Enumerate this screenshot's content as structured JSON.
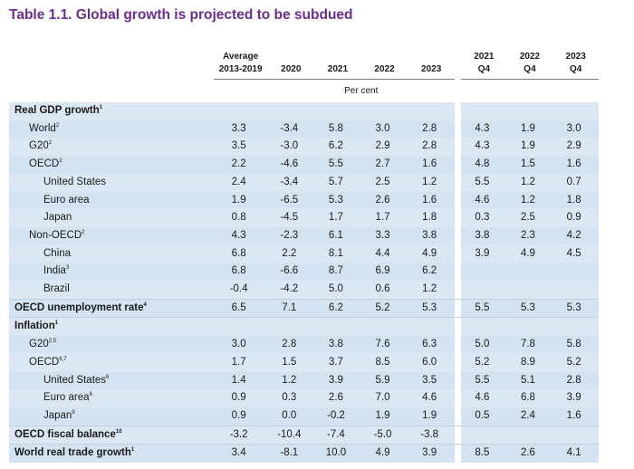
{
  "title": "Table 1.1. Global growth is projected to be subdued",
  "header": {
    "avg_line1": "Average",
    "avg_line2": "2013-2019",
    "years": [
      "2020",
      "2021",
      "2022",
      "2023"
    ],
    "quarters": [
      {
        "year": "2021",
        "q": "Q4"
      },
      {
        "year": "2022",
        "q": "Q4"
      },
      {
        "year": "2023",
        "q": "Q4"
      }
    ],
    "unit": "Per cent"
  },
  "rows": [
    {
      "label": "Real GDP growth",
      "sup": "1",
      "level": 0,
      "values": [
        "",
        "",
        "",
        "",
        ""
      ],
      "q4": [
        "",
        "",
        ""
      ]
    },
    {
      "label": "World",
      "sup": "2",
      "level": 1,
      "values": [
        "3.3",
        "-3.4",
        "5.8",
        "3.0",
        "2.8"
      ],
      "q4": [
        "4.3",
        "1.9",
        "3.0"
      ]
    },
    {
      "label": "G20",
      "sup": "2",
      "level": 1,
      "values": [
        "3.5",
        "-3.0",
        "6.2",
        "2.9",
        "2.8"
      ],
      "q4": [
        "4.3",
        "1.9",
        "2.9"
      ]
    },
    {
      "label": "OECD",
      "sup": "2",
      "level": 1,
      "values": [
        "2.2",
        "-4.6",
        "5.5",
        "2.7",
        "1.6"
      ],
      "q4": [
        "4.8",
        "1.5",
        "1.6"
      ]
    },
    {
      "label": "United States",
      "sup": "",
      "level": 2,
      "values": [
        "2.4",
        "-3.4",
        "5.7",
        "2.5",
        "1.2"
      ],
      "q4": [
        "5.5",
        "1.2",
        "0.7"
      ]
    },
    {
      "label": "Euro area",
      "sup": "",
      "level": 2,
      "values": [
        "1.9",
        "-6.5",
        "5.3",
        "2.6",
        "1.6"
      ],
      "q4": [
        "4.6",
        "1.2",
        "1.8"
      ]
    },
    {
      "label": "Japan",
      "sup": "",
      "level": 2,
      "values": [
        "0.8",
        "-4.5",
        "1.7",
        "1.7",
        "1.8"
      ],
      "q4": [
        "0.3",
        "2.5",
        "0.9"
      ]
    },
    {
      "label": "Non-OECD",
      "sup": "2",
      "level": 1,
      "values": [
        "4.3",
        "-2.3",
        "6.1",
        "3.3",
        "3.8"
      ],
      "q4": [
        "3.8",
        "2.3",
        "4.2"
      ]
    },
    {
      "label": "China",
      "sup": "",
      "level": 2,
      "values": [
        "6.8",
        "2.2",
        "8.1",
        "4.4",
        "4.9"
      ],
      "q4": [
        "3.9",
        "4.9",
        "4.5"
      ]
    },
    {
      "label": "India",
      "sup": "3",
      "level": 2,
      "values": [
        "6.8",
        "-6.6",
        "8.7",
        "6.9",
        "6.2"
      ],
      "q4": [
        "",
        "",
        ""
      ]
    },
    {
      "label": "Brazil",
      "sup": "",
      "level": 2,
      "values": [
        "-0.4",
        "-4.2",
        "5.0",
        "0.6",
        "1.2"
      ],
      "q4": [
        "",
        "",
        ""
      ]
    },
    {
      "label": "OECD unemployment rate",
      "sup": "4",
      "level": 0,
      "values": [
        "6.5",
        "7.1",
        "6.2",
        "5.2",
        "5.3"
      ],
      "q4": [
        "5.5",
        "5.3",
        "5.3"
      ]
    },
    {
      "label": "Inflation",
      "sup": "1",
      "level": 0,
      "values": [
        "",
        "",
        "",
        "",
        ""
      ],
      "q4": [
        "",
        "",
        ""
      ]
    },
    {
      "label": "G20",
      "sup": "2,5",
      "level": 1,
      "values": [
        "3.0",
        "2.8",
        "3.8",
        "7.6",
        "6.3"
      ],
      "q4": [
        "5.0",
        "7.8",
        "5.8"
      ]
    },
    {
      "label": "OECD",
      "sup": "6,7",
      "level": 1,
      "values": [
        "1.7",
        "1.5",
        "3.7",
        "8.5",
        "6.0"
      ],
      "q4": [
        "5.2",
        "8.9",
        "5.2"
      ]
    },
    {
      "label": "United States",
      "sup": "6",
      "level": 2,
      "values": [
        "1.4",
        "1.2",
        "3.9",
        "5.9",
        "3.5"
      ],
      "q4": [
        "5.5",
        "5.1",
        "2.8"
      ]
    },
    {
      "label": "Euro area",
      "sup": "8",
      "level": 2,
      "values": [
        "0.9",
        "0.3",
        "2.6",
        "7.0",
        "4.6"
      ],
      "q4": [
        "4.6",
        "6.8",
        "3.9"
      ]
    },
    {
      "label": "Japan",
      "sup": "9",
      "level": 2,
      "values": [
        "0.9",
        "0.0",
        "-0.2",
        "1.9",
        "1.9"
      ],
      "q4": [
        "0.5",
        "2.4",
        "1.6"
      ]
    },
    {
      "label": "OECD fiscal balance",
      "sup": "10",
      "level": 0,
      "values": [
        "-3.2",
        "-10.4",
        "-7.4",
        "-5.0",
        "-3.8"
      ],
      "q4": [
        "",
        "",
        ""
      ]
    },
    {
      "label": "World real trade growth",
      "sup": "1",
      "level": 0,
      "values": [
        "3.4",
        "-8.1",
        "10.0",
        "4.9",
        "3.9"
      ],
      "q4": [
        "8.5",
        "2.6",
        "4.1"
      ]
    }
  ]
}
